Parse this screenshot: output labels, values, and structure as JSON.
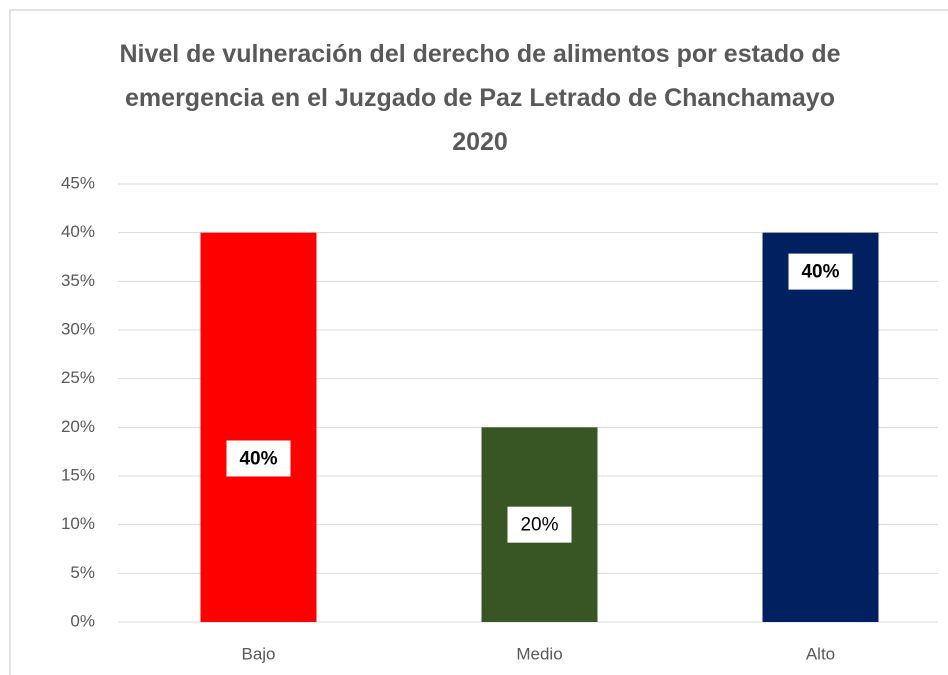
{
  "chart_data": {
    "type": "bar",
    "title": "Nivel de vulneración del derecho de alimentos por estado de emergencia en el Juzgado de Paz Letrado de Chanchamayo 2020",
    "categories": [
      "Bajo",
      "Medio",
      "Alto"
    ],
    "values": [
      40,
      20,
      40
    ],
    "value_labels": [
      "40%",
      "20%",
      "40%"
    ],
    "colors": [
      "#ff0000",
      "#375623",
      "#002060"
    ],
    "ylim": [
      0,
      45
    ],
    "yticks": [
      {
        "value": 0,
        "label": "0%"
      },
      {
        "value": 5,
        "label": "5%"
      },
      {
        "value": 10,
        "label": "10%"
      },
      {
        "value": 15,
        "label": "15%"
      },
      {
        "value": 20,
        "label": "20%"
      },
      {
        "value": 25,
        "label": "25%"
      },
      {
        "value": 30,
        "label": "30%"
      },
      {
        "value": 35,
        "label": "35%"
      },
      {
        "value": 40,
        "label": "40%"
      },
      {
        "value": 45,
        "label": "45%"
      }
    ],
    "grid": true
  }
}
